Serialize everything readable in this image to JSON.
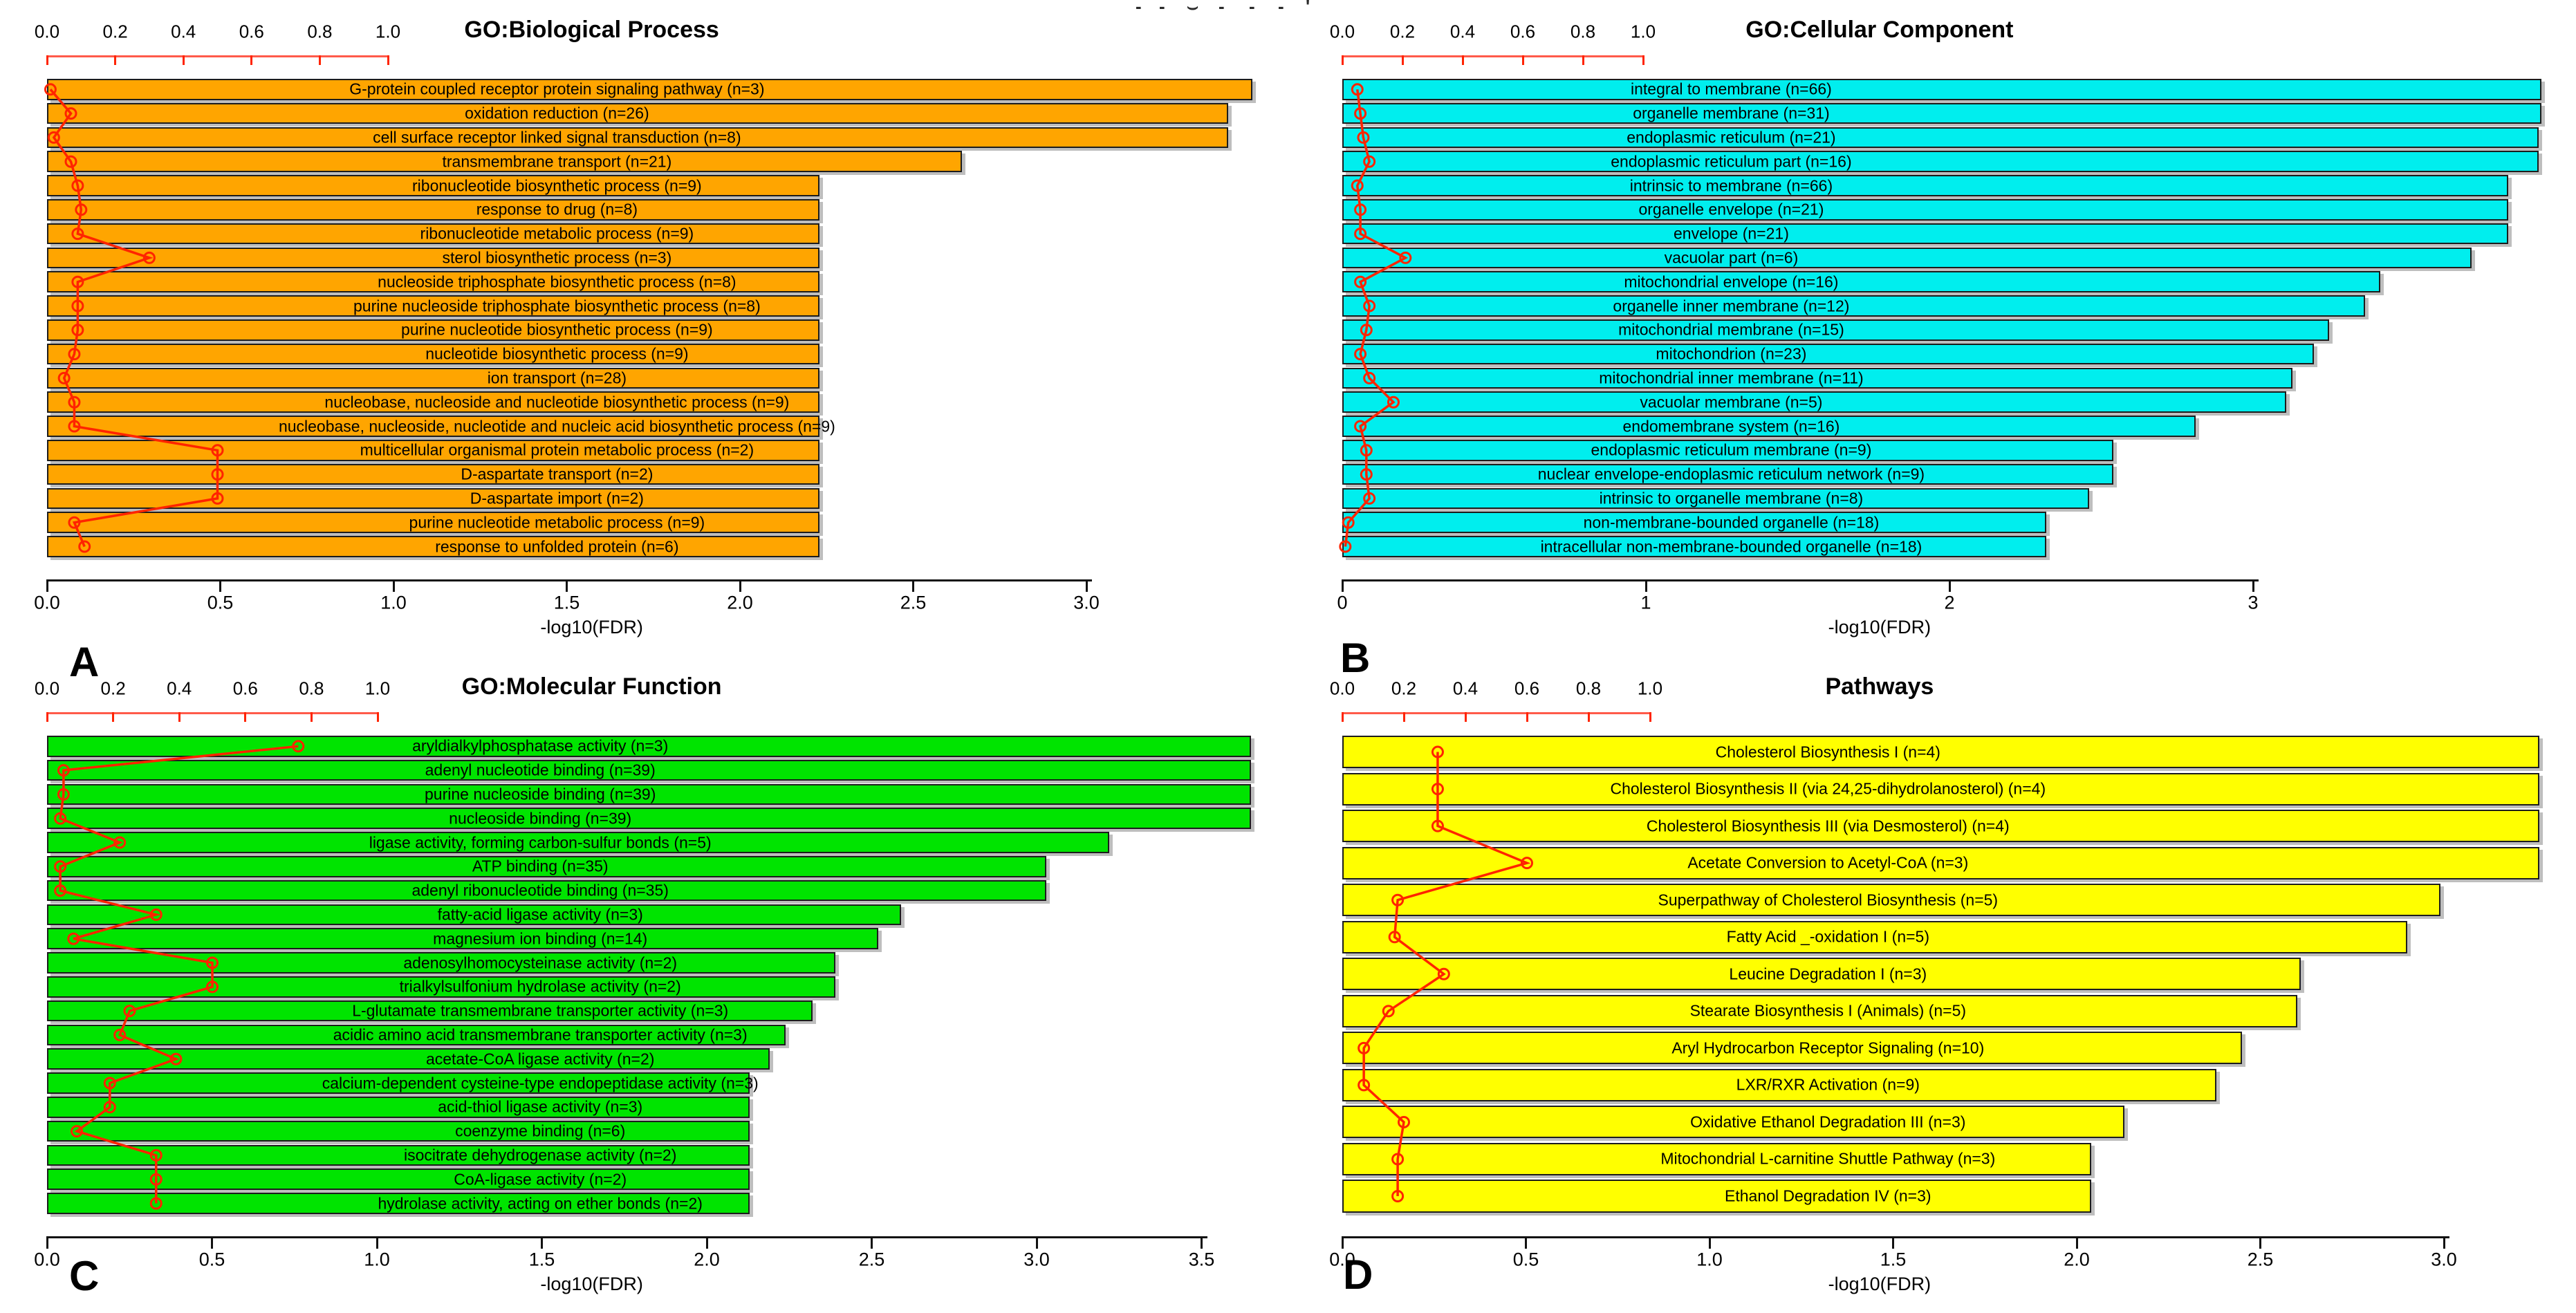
{
  "colors": {
    "red_line": "#FF2400",
    "top_axis_line": "#FF5A4A",
    "top_axis_tick": "#FF2400",
    "axis": "#111111"
  },
  "top_edge_artifacts": [
    {
      "x": 1642,
      "glyph": "-"
    },
    {
      "x": 1676,
      "glyph": "-"
    },
    {
      "x": 1716,
      "glyph": "⌣"
    },
    {
      "x": 1762,
      "glyph": "-"
    },
    {
      "x": 1806,
      "glyph": "-"
    },
    {
      "x": 1848,
      "glyph": "-"
    },
    {
      "x": 1888,
      "glyph": "'"
    }
  ],
  "chart_data": [
    {
      "type": "bar",
      "orientation": "horizontal",
      "letter": "A",
      "title": "GO:Biological Process",
      "xlabel": "-log10(FDR)",
      "bar_color": "#FFA500",
      "xlim": [
        0,
        3.0
      ],
      "x_tick_step": 0.5,
      "x_ticks": [
        "0.0",
        "0.5",
        "1.0",
        "1.5",
        "2.0",
        "2.5",
        "3.0"
      ],
      "top_axis_ticks": [
        "0.0",
        "0.2",
        "0.4",
        "0.6",
        "0.8",
        "1.0"
      ],
      "top_axis_range": [
        0,
        1.0
      ],
      "legend": "none",
      "grid": false,
      "categories": [
        "G-protein coupled receptor protein signaling pathway (n=3)",
        "oxidation reduction (n=26)",
        "cell surface receptor linked signal transduction (n=8)",
        "transmembrane transport (n=21)",
        "ribonucleotide biosynthetic process (n=9)",
        "response to drug (n=8)",
        "ribonucleotide metabolic process (n=9)",
        "sterol biosynthetic process (n=3)",
        "nucleoside triphosphate biosynthetic process (n=8)",
        "purine nucleoside triphosphate biosynthetic process (n=8)",
        "purine nucleotide biosynthetic process (n=9)",
        "nucleotide biosynthetic process (n=9)",
        "ion transport (n=28)",
        "nucleobase, nucleoside and nucleotide biosynthetic process (n=9)",
        "nucleobase, nucleoside, nucleotide and nucleic acid biosynthetic process (n=9)",
        "multicellular organismal protein metabolic process (n=2)",
        "D-aspartate transport (n=2)",
        "D-aspartate import (n=2)",
        "purine nucleotide metabolic process (n=9)",
        "response to unfolded protein (n=6)"
      ],
      "values": [
        3.48,
        3.41,
        3.41,
        2.64,
        2.23,
        2.23,
        2.23,
        2.23,
        2.23,
        2.23,
        2.23,
        2.23,
        2.23,
        2.23,
        2.23,
        2.23,
        2.23,
        2.23,
        2.23,
        2.23
      ],
      "red_line_values": [
        0.01,
        0.07,
        0.02,
        0.07,
        0.09,
        0.1,
        0.09,
        0.3,
        0.09,
        0.09,
        0.09,
        0.08,
        0.05,
        0.08,
        0.08,
        0.5,
        0.5,
        0.5,
        0.08,
        0.11
      ]
    },
    {
      "type": "bar",
      "orientation": "horizontal",
      "letter": "B",
      "title": "GO:Cellular Component",
      "xlabel": "-log10(FDR)",
      "bar_color": "#00EEEE",
      "xlim": [
        0,
        3.0
      ],
      "x_tick_step": 1.0,
      "x_ticks": [
        "0",
        "1",
        "2",
        "3"
      ],
      "top_axis_ticks": [
        "0.0",
        "0.2",
        "0.4",
        "0.6",
        "0.8",
        "1.0"
      ],
      "top_axis_range": [
        0,
        1.0
      ],
      "legend": "none",
      "grid": false,
      "categories": [
        "integral to membrane (n=66)",
        "organelle membrane (n=31)",
        "endoplasmic reticulum (n=21)",
        "endoplasmic reticulum part (n=16)",
        "intrinsic to membrane (n=66)",
        "organelle envelope (n=21)",
        "envelope (n=21)",
        "vacuolar part (n=6)",
        "mitochondrial envelope (n=16)",
        "organelle inner membrane (n=12)",
        "mitochondrial membrane (n=15)",
        "mitochondrion (n=23)",
        "mitochondrial inner membrane (n=11)",
        "vacuolar membrane (n=5)",
        "endomembrane system (n=16)",
        "endoplasmic reticulum membrane (n=9)",
        "nuclear envelope-endoplasmic reticulum network (n=9)",
        "intrinsic to organelle membrane (n=8)",
        "non-membrane-bounded organelle (n=18)",
        "intracellular non-membrane-bounded organelle (n=18)"
      ],
      "values": [
        3.95,
        3.95,
        3.94,
        3.94,
        3.84,
        3.84,
        3.84,
        3.72,
        3.42,
        3.37,
        3.25,
        3.2,
        3.13,
        3.11,
        2.81,
        2.54,
        2.54,
        2.46,
        2.32,
        2.32
      ],
      "red_line_values": [
        0.05,
        0.06,
        0.07,
        0.09,
        0.05,
        0.06,
        0.06,
        0.21,
        0.06,
        0.09,
        0.08,
        0.06,
        0.09,
        0.17,
        0.06,
        0.08,
        0.08,
        0.09,
        0.02,
        0.01
      ]
    },
    {
      "type": "bar",
      "orientation": "horizontal",
      "letter": "C",
      "title": "GO:Molecular Function",
      "xlabel": "-log10(FDR)",
      "bar_color": "#00E400",
      "xlim": [
        0,
        3.5
      ],
      "x_tick_step": 0.5,
      "x_ticks": [
        "0.0",
        "0.5",
        "1.0",
        "1.5",
        "2.0",
        "2.5",
        "3.0",
        "3.5"
      ],
      "top_axis_ticks": [
        "0.0",
        "0.2",
        "0.4",
        "0.6",
        "0.8",
        "1.0"
      ],
      "top_axis_range": [
        0,
        1.0
      ],
      "legend": "none",
      "grid": false,
      "categories": [
        "aryldialkylphosphatase activity (n=3)",
        "adenyl nucleotide binding (n=39)",
        "purine nucleoside binding (n=39)",
        "nucleoside binding (n=39)",
        "ligase activity, forming carbon-sulfur bonds (n=5)",
        "ATP binding (n=35)",
        "adenyl ribonucleotide binding (n=35)",
        "fatty-acid ligase activity (n=3)",
        "magnesium ion binding (n=14)",
        "adenosylhomocysteinase activity (n=2)",
        "trialkylsulfonium hydrolase activity (n=2)",
        "L-glutamate transmembrane transporter activity (n=3)",
        "acidic amino acid transmembrane transporter activity (n=3)",
        "acetate-CoA ligase activity (n=2)",
        "calcium-dependent cysteine-type endopeptidase activity (n=3)",
        "acid-thiol ligase activity (n=3)",
        "coenzyme binding (n=6)",
        "isocitrate dehydrogenase activity (n=2)",
        "CoA-ligase activity (n=2)",
        "hydrolase activity, acting on ether bonds (n=2)"
      ],
      "values": [
        3.65,
        3.65,
        3.65,
        3.65,
        3.22,
        3.03,
        3.03,
        2.59,
        2.52,
        2.39,
        2.39,
        2.32,
        2.24,
        2.19,
        2.13,
        2.13,
        2.13,
        2.13,
        2.13,
        2.13
      ],
      "red_line_values": [
        0.76,
        0.05,
        0.05,
        0.04,
        0.22,
        0.04,
        0.04,
        0.33,
        0.08,
        0.5,
        0.5,
        0.25,
        0.22,
        0.39,
        0.19,
        0.19,
        0.09,
        0.33,
        0.33,
        0.33
      ]
    },
    {
      "type": "bar",
      "orientation": "horizontal",
      "letter": "D",
      "title": "Pathways",
      "xlabel": "-log10(FDR)",
      "bar_color": "#FFFF00",
      "xlim": [
        0,
        3.0
      ],
      "x_tick_step": 0.5,
      "x_ticks": [
        "0.0",
        "0.5",
        "1.0",
        "1.5",
        "2.0",
        "2.5",
        "3.0"
      ],
      "top_axis_ticks": [
        "0.0",
        "0.2",
        "0.4",
        "0.6",
        "0.8",
        "1.0"
      ],
      "top_axis_range": [
        0,
        1.0
      ],
      "legend": "none",
      "grid": false,
      "categories": [
        "Cholesterol Biosynthesis I (n=4)",
        "Cholesterol Biosynthesis II (via 24,25-dihydrolanosterol) (n=4)",
        "Cholesterol Biosynthesis III (via Desmosterol) (n=4)",
        "Acetate Conversion to Acetyl-CoA (n=3)",
        "Superpathway of Cholesterol Biosynthesis (n=5)",
        "Fatty Acid _-oxidation I (n=5)",
        "Leucine Degradation I (n=3)",
        "Stearate Biosynthesis I (Animals) (n=5)",
        "Aryl Hydrocarbon Receptor Signaling (n=10)",
        "LXR/RXR Activation (n=9)",
        "Oxidative Ethanol Degradation III (n=3)",
        "Mitochondrial L-carnitine Shuttle Pathway (n=3)",
        "Ethanol Degradation IV (n=3)"
      ],
      "values": [
        3.26,
        3.26,
        3.26,
        3.26,
        2.99,
        2.9,
        2.61,
        2.6,
        2.45,
        2.38,
        2.13,
        2.04,
        2.04
      ],
      "red_line_values": [
        0.31,
        0.31,
        0.31,
        0.6,
        0.18,
        0.17,
        0.33,
        0.15,
        0.07,
        0.07,
        0.2,
        0.18,
        0.18
      ]
    }
  ]
}
